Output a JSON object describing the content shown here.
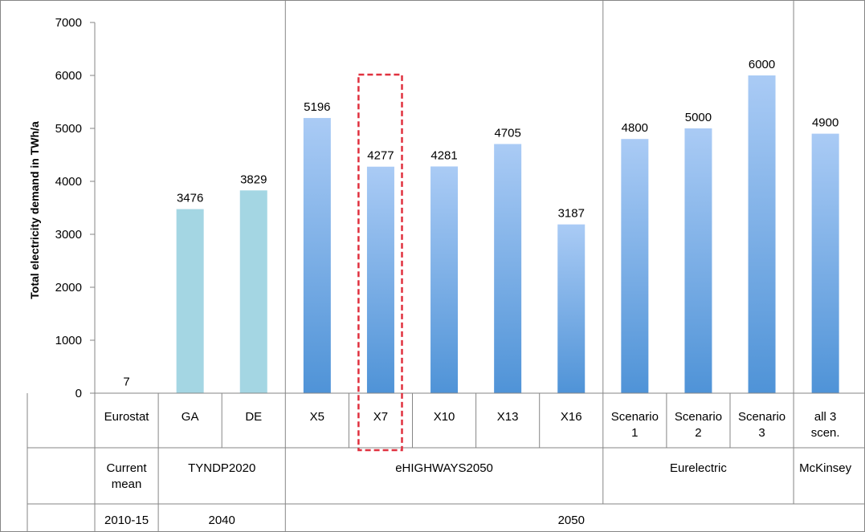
{
  "chart_data": {
    "type": "bar",
    "ylabel": "Total electricity demand in TWh/a",
    "ylim": [
      0,
      7000
    ],
    "yticks": [
      0,
      1000,
      2000,
      3000,
      4000,
      5000,
      6000,
      7000
    ],
    "grid": false,
    "legend": "none",
    "categories": [
      {
        "label": [
          "Eurostat"
        ],
        "value": 7,
        "style": "gray"
      },
      {
        "label": [
          "GA"
        ],
        "value": 3476,
        "style": "cyan"
      },
      {
        "label": [
          "DE"
        ],
        "value": 3829,
        "style": "cyan"
      },
      {
        "label": [
          "X5"
        ],
        "value": 5196,
        "style": "blue"
      },
      {
        "label": [
          "X7"
        ],
        "value": 4277,
        "style": "blue",
        "highlighted": true
      },
      {
        "label": [
          "X10"
        ],
        "value": 4281,
        "style": "blue"
      },
      {
        "label": [
          "X13"
        ],
        "value": 4705,
        "style": "blue"
      },
      {
        "label": [
          "X16"
        ],
        "value": 3187,
        "style": "blue"
      },
      {
        "label": [
          "Scenario",
          "1"
        ],
        "value": 4800,
        "style": "blue"
      },
      {
        "label": [
          "Scenario",
          "2"
        ],
        "value": 5000,
        "style": "blue"
      },
      {
        "label": [
          "Scenario",
          "3"
        ],
        "value": 6000,
        "style": "blue"
      },
      {
        "label": [
          "all 3",
          "scen."
        ],
        "value": 4900,
        "style": "blue"
      }
    ],
    "groups": [
      {
        "label": [
          "Current",
          "mean"
        ],
        "span": 1
      },
      {
        "label": [
          "TYNDP2020"
        ],
        "span": 2
      },
      {
        "label": [
          "eHIGHWAYS2050"
        ],
        "span": 5
      },
      {
        "label": [
          "Eurelectric"
        ],
        "span": 3
      },
      {
        "label": [
          "McKinsey"
        ],
        "span": 1
      }
    ],
    "years": [
      {
        "label": "2010-15",
        "span": 1
      },
      {
        "label": "2040",
        "span": 2
      },
      {
        "label": "2050",
        "span": 9
      }
    ],
    "colors": {
      "gray": "#8c8c8c",
      "cyan": "#a4d6e3",
      "blue_top": "#aacbf5",
      "blue_bottom": "#4f93d7",
      "highlight": "#e0313f",
      "axis": "#868686"
    }
  }
}
